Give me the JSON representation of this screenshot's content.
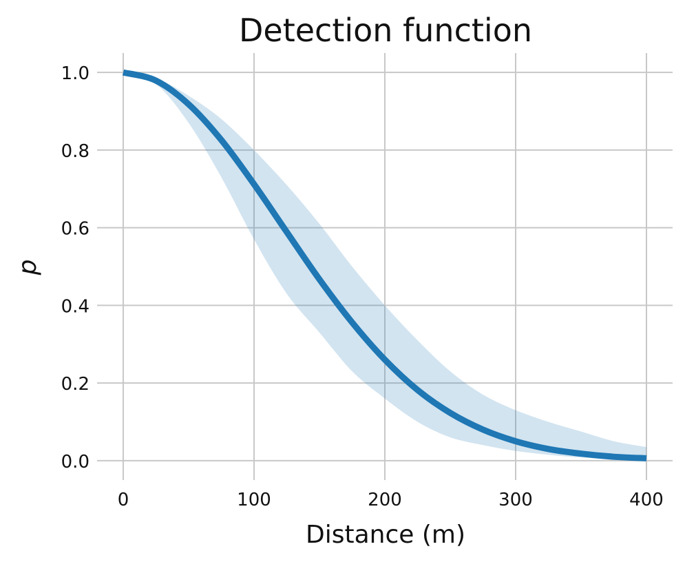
{
  "chart_data": {
    "type": "line",
    "title": "Detection function",
    "xlabel": "Distance (m)",
    "ylabel": "p",
    "xlim": [
      -20,
      420
    ],
    "ylim": [
      -0.05,
      1.05
    ],
    "grid": true,
    "x_ticks": [
      0,
      100,
      200,
      300,
      400
    ],
    "y_ticks": [
      0.0,
      0.2,
      0.4,
      0.6,
      0.8,
      1.0
    ],
    "x_tick_labels": [
      "0",
      "100",
      "200",
      "300",
      "400"
    ],
    "y_tick_labels": [
      "0.0",
      "0.2",
      "0.4",
      "0.6",
      "0.8",
      "1.0"
    ],
    "colors": {
      "line": "#1f77b4",
      "band": "#1f77b4",
      "band_opacity": 0.2
    },
    "series": [
      {
        "x": [
          0,
          25,
          50,
          75,
          100,
          125,
          150,
          175,
          200,
          225,
          250,
          275,
          300,
          325,
          350,
          375,
          400
        ],
        "values": [
          1.0,
          0.979,
          0.918,
          0.826,
          0.712,
          0.589,
          0.467,
          0.356,
          0.26,
          0.182,
          0.123,
          0.08,
          0.05,
          0.03,
          0.018,
          0.01,
          0.006
        ]
      }
    ],
    "band": {
      "x": [
        0,
        25,
        50,
        75,
        100,
        125,
        150,
        175,
        200,
        225,
        250,
        275,
        300,
        325,
        350,
        375,
        400
      ],
      "lower": [
        1.0,
        0.97,
        0.87,
        0.73,
        0.57,
        0.43,
        0.33,
        0.23,
        0.16,
        0.1,
        0.06,
        0.04,
        0.025,
        0.015,
        0.008,
        0.004,
        0.002
      ],
      "upper": [
        1.0,
        0.985,
        0.94,
        0.88,
        0.8,
        0.71,
        0.61,
        0.5,
        0.4,
        0.31,
        0.23,
        0.17,
        0.13,
        0.1,
        0.075,
        0.05,
        0.035
      ]
    }
  }
}
